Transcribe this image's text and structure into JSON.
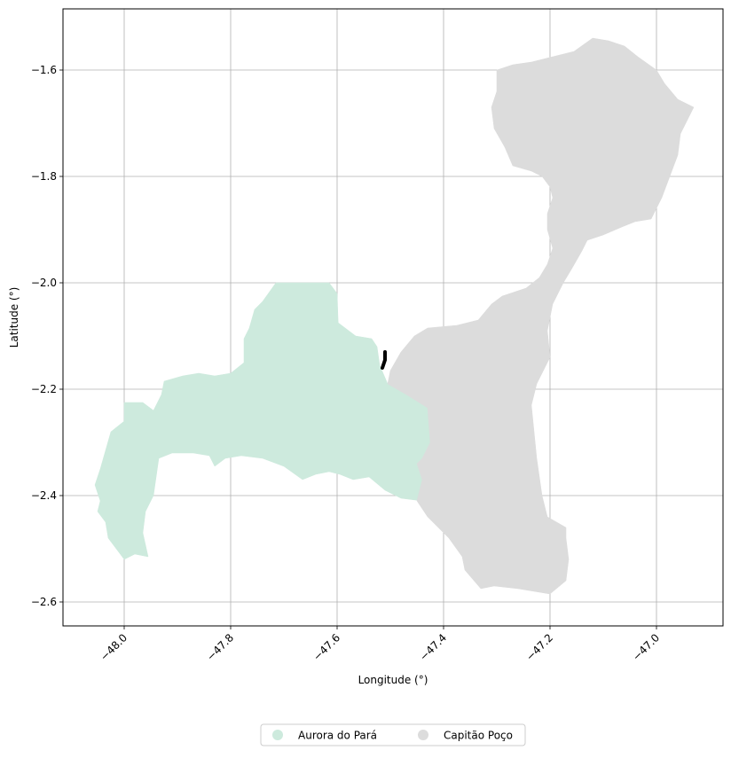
{
  "map": {
    "xlabel": "Longitude (°)",
    "ylabel": "Latitude (°)",
    "xlim": [
      -48.115,
      -46.875
    ],
    "ylim": [
      -2.645,
      -1.485
    ],
    "xticks": [
      -48.0,
      -47.8,
      -47.6,
      -47.4,
      -47.2,
      -47.0
    ],
    "xtick_labels": [
      "−48.0",
      "−47.8",
      "−47.6",
      "−47.4",
      "−47.2",
      "−47.0"
    ],
    "yticks": [
      -1.6,
      -1.8,
      -2.0,
      -2.2,
      -2.4,
      -2.6
    ],
    "ytick_labels": [
      "−1.6",
      "−1.8",
      "−2.0",
      "−2.2",
      "−2.4",
      "−2.6"
    ],
    "grid": true,
    "legend_position": "bottom-center",
    "regions": [
      {
        "name": "Aurora do Pará",
        "color": "#cdeadd",
        "outline": [
          [
            -47.715,
            -2.0
          ],
          [
            -47.615,
            -2.0
          ],
          [
            -47.6,
            -2.02
          ],
          [
            -47.598,
            -2.075
          ],
          [
            -47.565,
            -2.1
          ],
          [
            -47.535,
            -2.105
          ],
          [
            -47.525,
            -2.12
          ],
          [
            -47.52,
            -2.155
          ],
          [
            -47.505,
            -2.19
          ],
          [
            -47.47,
            -2.21
          ],
          [
            -47.43,
            -2.235
          ],
          [
            -47.425,
            -2.3
          ],
          [
            -47.44,
            -2.33
          ],
          [
            -47.45,
            -2.34
          ],
          [
            -47.44,
            -2.37
          ],
          [
            -47.44,
            -2.41
          ],
          [
            -47.48,
            -2.405
          ],
          [
            -47.51,
            -2.39
          ],
          [
            -47.54,
            -2.365
          ],
          [
            -47.57,
            -2.37
          ],
          [
            -47.595,
            -2.36
          ],
          [
            -47.615,
            -2.355
          ],
          [
            -47.64,
            -2.36
          ],
          [
            -47.665,
            -2.37
          ],
          [
            -47.7,
            -2.345
          ],
          [
            -47.74,
            -2.33
          ],
          [
            -47.78,
            -2.325
          ],
          [
            -47.81,
            -2.33
          ],
          [
            -47.83,
            -2.345
          ],
          [
            -47.84,
            -2.325
          ],
          [
            -47.87,
            -2.32
          ],
          [
            -47.91,
            -2.32
          ],
          [
            -47.935,
            -2.33
          ],
          [
            -47.945,
            -2.4
          ],
          [
            -47.96,
            -2.43
          ],
          [
            -47.965,
            -2.47
          ],
          [
            -47.955,
            -2.515
          ],
          [
            -47.98,
            -2.51
          ],
          [
            -48.0,
            -2.52
          ],
          [
            -48.03,
            -2.48
          ],
          [
            -48.035,
            -2.45
          ],
          [
            -48.05,
            -2.43
          ],
          [
            -48.045,
            -2.41
          ],
          [
            -48.055,
            -2.38
          ],
          [
            -48.045,
            -2.35
          ],
          [
            -48.035,
            -2.315
          ],
          [
            -48.025,
            -2.28
          ],
          [
            -48.0,
            -2.26
          ],
          [
            -48.0,
            -2.225
          ],
          [
            -47.965,
            -2.225
          ],
          [
            -47.945,
            -2.24
          ],
          [
            -47.93,
            -2.21
          ],
          [
            -47.925,
            -2.185
          ],
          [
            -47.89,
            -2.175
          ],
          [
            -47.86,
            -2.17
          ],
          [
            -47.83,
            -2.175
          ],
          [
            -47.8,
            -2.17
          ],
          [
            -47.775,
            -2.15
          ],
          [
            -47.775,
            -2.105
          ],
          [
            -47.765,
            -2.085
          ],
          [
            -47.755,
            -2.05
          ],
          [
            -47.74,
            -2.035
          ],
          [
            -47.715,
            -2.0
          ]
        ]
      },
      {
        "name": "Capitão Poço",
        "color": "#dcdcdc",
        "outline": [
          [
            -47.45,
            -2.41
          ],
          [
            -47.44,
            -2.37
          ],
          [
            -47.45,
            -2.34
          ],
          [
            -47.44,
            -2.33
          ],
          [
            -47.425,
            -2.3
          ],
          [
            -47.43,
            -2.235
          ],
          [
            -47.47,
            -2.21
          ],
          [
            -47.505,
            -2.19
          ],
          [
            -47.5,
            -2.165
          ],
          [
            -47.48,
            -2.13
          ],
          [
            -47.455,
            -2.1
          ],
          [
            -47.43,
            -2.085
          ],
          [
            -47.375,
            -2.08
          ],
          [
            -47.335,
            -2.07
          ],
          [
            -47.31,
            -2.04
          ],
          [
            -47.29,
            -2.025
          ],
          [
            -47.245,
            -2.01
          ],
          [
            -47.22,
            -1.99
          ],
          [
            -47.205,
            -1.965
          ],
          [
            -47.195,
            -1.935
          ],
          [
            -47.205,
            -1.9
          ],
          [
            -47.205,
            -1.87
          ],
          [
            -47.195,
            -1.84
          ],
          [
            -47.2,
            -1.82
          ],
          [
            -47.215,
            -1.8
          ],
          [
            -47.235,
            -1.79
          ],
          [
            -47.27,
            -1.78
          ],
          [
            -47.285,
            -1.745
          ],
          [
            -47.305,
            -1.71
          ],
          [
            -47.31,
            -1.67
          ],
          [
            -47.3,
            -1.64
          ],
          [
            -47.3,
            -1.6
          ],
          [
            -47.27,
            -1.59
          ],
          [
            -47.235,
            -1.585
          ],
          [
            -47.195,
            -1.575
          ],
          [
            -47.155,
            -1.565
          ],
          [
            -47.12,
            -1.54
          ],
          [
            -47.09,
            -1.545
          ],
          [
            -47.06,
            -1.555
          ],
          [
            -47.035,
            -1.575
          ],
          [
            -47.0,
            -1.6
          ],
          [
            -46.985,
            -1.625
          ],
          [
            -46.96,
            -1.655
          ],
          [
            -46.93,
            -1.67
          ],
          [
            -46.955,
            -1.72
          ],
          [
            -46.96,
            -1.76
          ],
          [
            -46.975,
            -1.8
          ],
          [
            -46.99,
            -1.84
          ],
          [
            -47.01,
            -1.88
          ],
          [
            -47.04,
            -1.885
          ],
          [
            -47.065,
            -1.895
          ],
          [
            -47.1,
            -1.91
          ],
          [
            -47.13,
            -1.92
          ],
          [
            -47.14,
            -1.94
          ],
          [
            -47.16,
            -1.975
          ],
          [
            -47.175,
            -2.0
          ],
          [
            -47.195,
            -2.04
          ],
          [
            -47.205,
            -2.09
          ],
          [
            -47.2,
            -2.14
          ],
          [
            -47.225,
            -2.19
          ],
          [
            -47.235,
            -2.23
          ],
          [
            -47.23,
            -2.28
          ],
          [
            -47.225,
            -2.33
          ],
          [
            -47.215,
            -2.4
          ],
          [
            -47.205,
            -2.44
          ],
          [
            -47.17,
            -2.46
          ],
          [
            -47.17,
            -2.48
          ],
          [
            -47.165,
            -2.52
          ],
          [
            -47.17,
            -2.56
          ],
          [
            -47.2,
            -2.585
          ],
          [
            -47.26,
            -2.575
          ],
          [
            -47.305,
            -2.57
          ],
          [
            -47.33,
            -2.575
          ],
          [
            -47.36,
            -2.54
          ],
          [
            -47.365,
            -2.515
          ],
          [
            -47.39,
            -2.48
          ],
          [
            -47.4,
            -2.47
          ],
          [
            -47.43,
            -2.44
          ],
          [
            -47.45,
            -2.41
          ]
        ]
      }
    ],
    "border_segment": [
      [
        -47.51,
        -2.13
      ],
      [
        -47.51,
        -2.145
      ],
      [
        -47.515,
        -2.16
      ]
    ]
  }
}
